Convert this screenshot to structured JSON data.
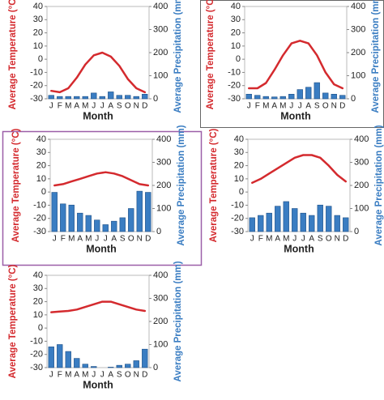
{
  "chart_data": [
    {
      "type": "climograph",
      "xlabel": "Month",
      "ylabel": "Average Temperature (°C)",
      "y2label": "Average Precipitation (mm)",
      "categories": [
        "J",
        "F",
        "M",
        "A",
        "M",
        "J",
        "J",
        "A",
        "S",
        "O",
        "N",
        "D"
      ],
      "ylim": [
        -30,
        40
      ],
      "yticks": [
        -30,
        -20,
        -10,
        0,
        10,
        20,
        30,
        40
      ],
      "y2lim": [
        0,
        400
      ],
      "y2ticks": [
        0,
        100,
        200,
        300,
        400
      ],
      "series": [
        {
          "color": "#d42a2e",
          "values": [
            -24,
            -25,
            -22,
            -14,
            -4,
            3,
            5,
            2,
            -5,
            -15,
            -22,
            -25
          ]
        },
        {
          "color": "#3a7dc2",
          "axis": "y2",
          "values": [
            15,
            10,
            10,
            10,
            10,
            25,
            10,
            30,
            15,
            15,
            10,
            20
          ]
        }
      ]
    },
    {
      "type": "climograph",
      "xlabel": "Month",
      "ylabel": "Average Temperature (°C)",
      "y2label": "Average Precipitation (mm)",
      "categories": [
        "J",
        "F",
        "M",
        "A",
        "M",
        "J",
        "J",
        "A",
        "S",
        "O",
        "N",
        "D"
      ],
      "ylim": [
        -30,
        40
      ],
      "yticks": [
        -30,
        -20,
        -10,
        0,
        10,
        20,
        30,
        40
      ],
      "y2lim": [
        0,
        400
      ],
      "y2ticks": [
        0,
        100,
        200,
        300,
        400
      ],
      "series": [
        {
          "color": "#d42a2e",
          "values": [
            -22,
            -22,
            -18,
            -8,
            3,
            12,
            14,
            12,
            3,
            -10,
            -19,
            -22
          ]
        },
        {
          "color": "#3a7dc2",
          "axis": "y2",
          "values": [
            20,
            15,
            10,
            8,
            10,
            20,
            40,
            50,
            70,
            25,
            20,
            15
          ]
        }
      ]
    },
    {
      "type": "climograph",
      "xlabel": "Month",
      "ylabel": "Average Temperature (°C)",
      "y2label": "Average Precipitation (mm)",
      "categories": [
        "J",
        "F",
        "M",
        "A",
        "M",
        "J",
        "J",
        "A",
        "S",
        "O",
        "N",
        "D"
      ],
      "ylim": [
        -30,
        40
      ],
      "yticks": [
        -30,
        -20,
        -10,
        0,
        10,
        20,
        30,
        40
      ],
      "y2lim": [
        0,
        400
      ],
      "y2ticks": [
        0,
        100,
        200,
        300,
        400
      ],
      "series": [
        {
          "color": "#d42a2e",
          "values": [
            5,
            6,
            8,
            10,
            12,
            14,
            15,
            14,
            12,
            9,
            6,
            5
          ]
        },
        {
          "color": "#3a7dc2",
          "axis": "y2",
          "values": [
            170,
            120,
            115,
            80,
            70,
            50,
            30,
            45,
            60,
            100,
            175,
            170
          ]
        }
      ]
    },
    {
      "type": "climograph",
      "xlabel": "Month",
      "ylabel": "Average Temperature (°C)",
      "y2label": "Average Precipitation (mm)",
      "categories": [
        "J",
        "F",
        "M",
        "A",
        "M",
        "J",
        "J",
        "A",
        "S",
        "O",
        "N",
        "D"
      ],
      "ylim": [
        -30,
        40
      ],
      "yticks": [
        -30,
        -20,
        -10,
        0,
        10,
        20,
        30,
        40
      ],
      "y2lim": [
        0,
        400
      ],
      "y2ticks": [
        0,
        100,
        200,
        300,
        400
      ],
      "series": [
        {
          "color": "#d42a2e",
          "values": [
            7,
            10,
            14,
            18,
            22,
            26,
            28,
            28,
            26,
            20,
            13,
            8
          ]
        },
        {
          "color": "#3a7dc2",
          "axis": "y2",
          "values": [
            60,
            70,
            80,
            110,
            130,
            100,
            80,
            70,
            115,
            110,
            70,
            60
          ]
        }
      ]
    },
    {
      "type": "climograph",
      "xlabel": "Month",
      "ylabel": "Average Temperature (°C)",
      "y2label": "Average Precipitation (mm)",
      "categories": [
        "J",
        "F",
        "M",
        "A",
        "M",
        "J",
        "J",
        "A",
        "S",
        "O",
        "N",
        "D"
      ],
      "ylim": [
        -30,
        40
      ],
      "yticks": [
        -30,
        -20,
        -10,
        0,
        10,
        20,
        30,
        40
      ],
      "y2lim": [
        0,
        400
      ],
      "y2ticks": [
        0,
        100,
        200,
        300,
        400
      ],
      "series": [
        {
          "color": "#d42a2e",
          "values": [
            12,
            12.5,
            13,
            14,
            16,
            18,
            20,
            20,
            18,
            16,
            14,
            13
          ]
        },
        {
          "color": "#3a7dc2",
          "axis": "y2",
          "values": [
            90,
            100,
            70,
            40,
            15,
            5,
            0,
            2,
            10,
            15,
            30,
            80
          ]
        }
      ]
    }
  ]
}
